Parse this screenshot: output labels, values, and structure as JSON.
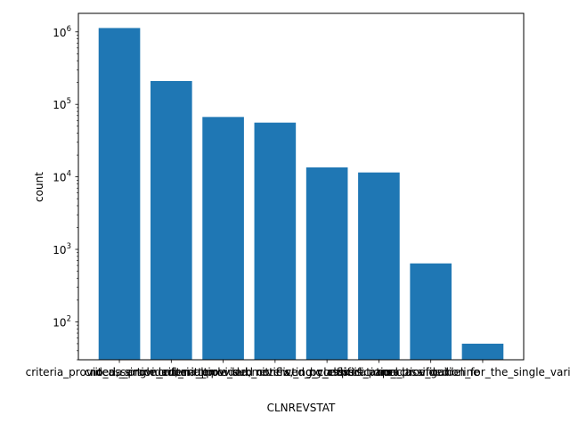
{
  "chart_data": {
    "type": "bar",
    "yscale": "log",
    "categories": [
      "criteria_provided,_single_submitter",
      "no_assertion_criteria_provided",
      "criteria_provided,_multiple_submitters,_no_conflicts",
      "criteria_provided,_conflicting_classifications",
      "reviewed_by_expert_panel",
      "no_classification_provided",
      "practice_guideline",
      "no_classification_for_the_single_variant"
    ],
    "tick_labels": [
      "criteria_provided,_single_submitter",
      "no_assertion_criteria_provided",
      "criteria_provided,_multiple_submitters,_no_conflicts",
      "criteria_provided,_conflicting_classifications",
      "reviewed_by_expert_panel",
      "no_classification_provided",
      "practice_guideline",
      "no_classification_for_the_single_variant"
    ],
    "values": [
      1130000,
      210000,
      67000,
      56000,
      13500,
      11500,
      640,
      50
    ],
    "xlabel": "CLNREVSTAT",
    "ylabel": "count",
    "ylim": [
      30,
      1800000
    ],
    "y_ticks": [
      {
        "base": "10",
        "exp": "2",
        "value": 100
      },
      {
        "base": "10",
        "exp": "3",
        "value": 1000
      },
      {
        "base": "10",
        "exp": "4",
        "value": 10000
      },
      {
        "base": "10",
        "exp": "5",
        "value": 100000
      },
      {
        "base": "10",
        "exp": "6",
        "value": 1000000
      }
    ],
    "bar_color": "#1f77b4",
    "grid": false,
    "legend": "none"
  }
}
